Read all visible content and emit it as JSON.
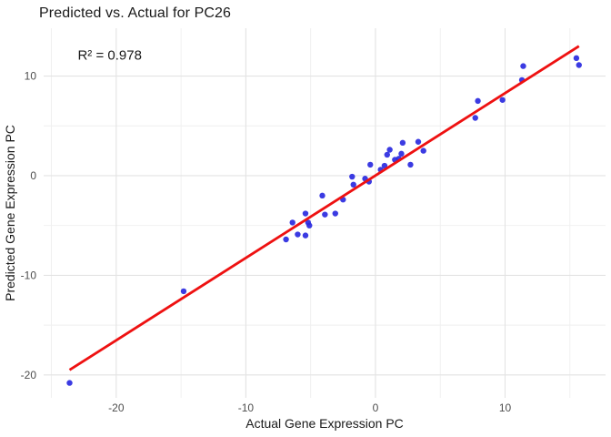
{
  "chart_data": {
    "type": "scatter",
    "title": "Predicted vs. Actual for PC26",
    "annotation": {
      "text": "R² = 0.978",
      "x": -20.5,
      "y": 12.1
    },
    "xlabel": "Actual Gene Expression PC",
    "ylabel": "Predicted Gene Expression PC",
    "xlim": [
      -25.6,
      17.75
    ],
    "ylim": [
      -22.3,
      14.8
    ],
    "grid": true,
    "legend_position": "none",
    "x_ticks": [
      {
        "value": -20,
        "label": "-20"
      },
      {
        "value": -10,
        "label": "-10"
      },
      {
        "value": 0,
        "label": "0"
      },
      {
        "value": 10,
        "label": "10"
      }
    ],
    "y_ticks": [
      {
        "value": 10,
        "label": "10"
      },
      {
        "value": 0,
        "label": "0"
      },
      {
        "value": -10,
        "label": "-10"
      },
      {
        "value": -20,
        "label": "-20"
      }
    ],
    "x_minor_ticks": [
      -25,
      -15,
      -5,
      5,
      15
    ],
    "y_minor_ticks": [
      5,
      -5,
      -15
    ],
    "points": [
      [
        -23.6,
        -20.8
      ],
      [
        -14.8,
        -11.6
      ],
      [
        -6.9,
        -6.4
      ],
      [
        -6.4,
        -4.7
      ],
      [
        -6.0,
        -5.9
      ],
      [
        -5.4,
        -3.8
      ],
      [
        -5.4,
        -6.0
      ],
      [
        -5.2,
        -4.7
      ],
      [
        -5.1,
        -5.0
      ],
      [
        -4.1,
        -2.0
      ],
      [
        -3.9,
        -3.9
      ],
      [
        -3.1,
        -3.8
      ],
      [
        -2.5,
        -2.4
      ],
      [
        -1.8,
        -0.1
      ],
      [
        -1.7,
        -0.9
      ],
      [
        -0.8,
        -0.3
      ],
      [
        -0.5,
        -0.6
      ],
      [
        -0.4,
        1.1
      ],
      [
        0.4,
        0.6
      ],
      [
        0.7,
        1.0
      ],
      [
        0.9,
        2.1
      ],
      [
        1.1,
        2.6
      ],
      [
        1.5,
        1.6
      ],
      [
        1.8,
        1.7
      ],
      [
        2.0,
        2.2
      ],
      [
        2.1,
        3.3
      ],
      [
        2.7,
        1.1
      ],
      [
        3.3,
        3.4
      ],
      [
        3.7,
        2.5
      ],
      [
        7.7,
        5.8
      ],
      [
        7.9,
        7.5
      ],
      [
        9.8,
        7.6
      ],
      [
        11.3,
        9.6
      ],
      [
        11.4,
        11.0
      ],
      [
        15.5,
        11.8
      ],
      [
        15.7,
        11.1
      ]
    ],
    "regression_line": {
      "x1": -23.6,
      "y1": -19.5,
      "x2": 15.7,
      "y2": 13.0
    },
    "r_squared": 0.978,
    "colors": {
      "point": "#2a2ae0",
      "line": "#ee1111",
      "grid_major": "#e3e3e3",
      "grid_minor": "#efefef",
      "text": "#1a1a1a",
      "tick_text": "#4d4d4d",
      "background": "#ffffff"
    }
  }
}
